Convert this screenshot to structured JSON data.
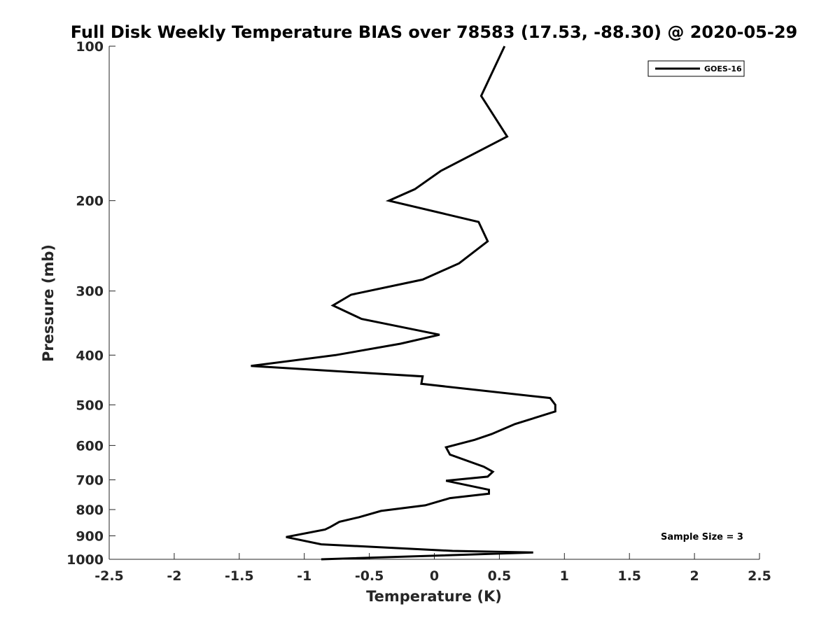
{
  "chart_data": {
    "type": "line",
    "title": "Full Disk Weekly Temperature BIAS over 78583 (17.53, -88.30) @ 2020-05-29",
    "xlabel": "Temperature (K)",
    "ylabel": "Pressure (mb)",
    "xlim": [
      -2.5,
      2.5
    ],
    "ylim": [
      100,
      1000
    ],
    "y_scale": "log",
    "y_reversed": true,
    "x_ticks": [
      -2.5,
      -2,
      -1.5,
      -1,
      -0.5,
      0,
      0.5,
      1,
      1.5,
      2,
      2.5
    ],
    "x_tick_labels": [
      "-2.5",
      "-2",
      "-1.5",
      "-1",
      "-0.5",
      "0",
      "0.5",
      "1",
      "1.5",
      "2",
      "2.5"
    ],
    "y_ticks": [
      100,
      200,
      300,
      400,
      500,
      600,
      700,
      800,
      900,
      1000
    ],
    "y_tick_labels": [
      "100",
      "200",
      "300",
      "400",
      "500",
      "600",
      "700",
      "800",
      "900",
      "1000"
    ],
    "grid": false,
    "legend_position": "top-right",
    "series": [
      {
        "name": "GOES-16",
        "color": "#000000",
        "points": [
          [
            0.54,
            100
          ],
          [
            0.36,
            125
          ],
          [
            0.56,
            150
          ],
          [
            0.05,
            175
          ],
          [
            -0.15,
            190
          ],
          [
            -0.35,
            200
          ],
          [
            0.34,
            220
          ],
          [
            0.41,
            240
          ],
          [
            0.19,
            265
          ],
          [
            -0.09,
            285
          ],
          [
            -0.64,
            305
          ],
          [
            -0.78,
            320
          ],
          [
            -0.56,
            340
          ],
          [
            0.04,
            365
          ],
          [
            -0.26,
            380
          ],
          [
            -0.76,
            400
          ],
          [
            -1.41,
            420
          ],
          [
            -0.09,
            440
          ],
          [
            -0.1,
            455
          ],
          [
            0.89,
            485
          ],
          [
            0.93,
            500
          ],
          [
            0.93,
            515
          ],
          [
            0.62,
            545
          ],
          [
            0.44,
            570
          ],
          [
            0.31,
            585
          ],
          [
            0.09,
            605
          ],
          [
            0.12,
            625
          ],
          [
            0.38,
            660
          ],
          [
            0.45,
            675
          ],
          [
            0.41,
            690
          ],
          [
            0.09,
            703
          ],
          [
            0.42,
            732
          ],
          [
            0.42,
            745
          ],
          [
            0.12,
            760
          ],
          [
            -0.07,
            785
          ],
          [
            -0.41,
            805
          ],
          [
            -0.58,
            828
          ],
          [
            -0.73,
            845
          ],
          [
            -0.8,
            865
          ],
          [
            -0.84,
            875
          ],
          [
            -1.14,
            905
          ],
          [
            -0.87,
            935
          ],
          [
            0.14,
            963
          ],
          [
            0.76,
            970
          ],
          [
            -0.87,
            1000
          ]
        ]
      }
    ],
    "annotations": [
      "Sample Size = 3"
    ]
  }
}
